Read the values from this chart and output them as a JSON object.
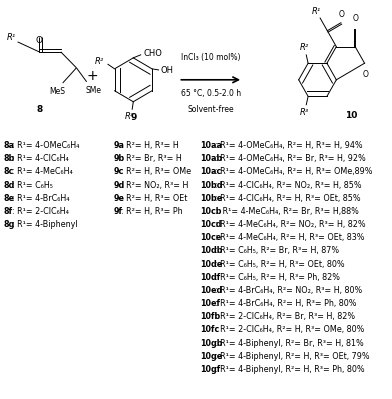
{
  "background_color": "#ffffff",
  "reaction_conditions": [
    "InCl₃ (10 mol%)",
    "65 °C, 0.5-2.0 h",
    "Solvent-free"
  ],
  "compound8_labels": [
    [
      "8a",
      ": R¹= 4-OMeC₆H₄"
    ],
    [
      "8b",
      ": R¹= 4-ClC₆H₄"
    ],
    [
      "8c",
      ": R¹= 4-MeC₆H₄"
    ],
    [
      "8d",
      ": R¹= C₆H₅"
    ],
    [
      "8e",
      ": R¹= 4-BrC₆H₄"
    ],
    [
      "8f",
      ": R¹= 2-ClC₆H₄"
    ],
    [
      "8g",
      ": R¹= 4-Biphenyl"
    ]
  ],
  "compound9_labels": [
    [
      "9a",
      ": R²= H, R³= H"
    ],
    [
      "9b",
      ": R²= Br, R³= H"
    ],
    [
      "9c",
      ": R²= H, R³= OMe"
    ],
    [
      "9d",
      ": R²= NO₂, R³= H"
    ],
    [
      "9e",
      ": R²= H, R³= OEt"
    ],
    [
      "9f",
      ": R²= H, R³= Ph"
    ]
  ],
  "compound10_labels": [
    [
      "10aa",
      ": R¹= 4-OMeC₆H₄, R²= H, R³= H, 94%"
    ],
    [
      "10ab",
      ": R¹= 4-OMeC₆H₄, R²= Br, R³= H, 92%"
    ],
    [
      "10ac",
      ": R¹= 4-OMeC₆H₄, R²= H, R³= OMe,89%"
    ],
    [
      "10bd",
      ": R¹= 4-ClC₆H₄, R²= NO₂, R³= H, 85%"
    ],
    [
      "10be",
      ": R¹= 4-ClC₆H₄, R²= H, R³= OEt, 85%"
    ],
    [
      "10cb",
      ":  R¹= 4-MeC₆H₄, R²= Br, R³= H,88%"
    ],
    [
      "10cd",
      ": R¹= 4-MeC₆H₄, R²= NO₂, R³= H, 82%"
    ],
    [
      "10ce",
      ": R¹= 4-MeC₆H₄, R²= H, R³= OEt, 83%"
    ],
    [
      "10db",
      ": R¹= C₆H₅, R²= Br, R³= H, 87%"
    ],
    [
      "10de",
      ": R¹= C₆H₅, R²= H, R³= OEt, 80%"
    ],
    [
      "10df",
      ": R¹= C₆H₅, R²= H, R³= Ph, 82%"
    ],
    [
      "10ed",
      ": R¹= 4-BrC₆H₄, R²= NO₂, R³= H, 80%"
    ],
    [
      "10ef",
      ": R¹= 4-BrC₆H₄, R²= H, R³= Ph, 80%"
    ],
    [
      "10fb",
      ": R¹= 2-ClC₆H₄, R²= Br, R³= H, 82%"
    ],
    [
      "10fc",
      ": R¹= 2-ClC₆H₄, R²= H, R³= OMe, 80%"
    ],
    [
      "10gb",
      ": R¹= 4-Biphenyl, R²= Br, R³= H, 81%"
    ],
    [
      "10ge",
      ": R¹= 4-Biphenyl, R²= H, R³= OEt, 79%"
    ],
    [
      "10gf",
      ": R¹= 4-Biphenyl, R²= H, R³= Ph, 80%"
    ]
  ]
}
